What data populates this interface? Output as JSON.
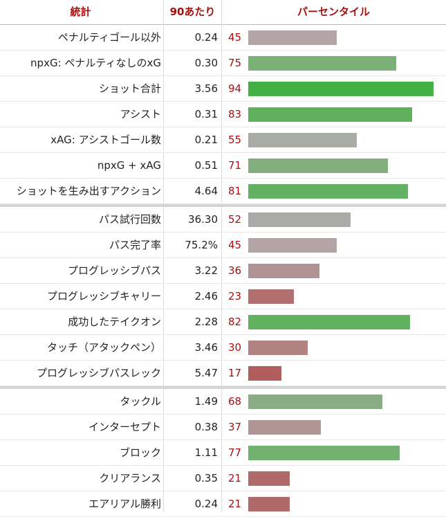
{
  "header": {
    "stat": "統計",
    "per90": "90あたり",
    "percentile": "パーセンタイル"
  },
  "groups": [
    {
      "rows": [
        {
          "stat": "ペナルティゴール以外",
          "per90": "0.24",
          "percentile": 45,
          "color": "#b3a5a5"
        },
        {
          "stat": "npxG: ペナルティなしのxG",
          "per90": "0.30",
          "percentile": 75,
          "color": "#7bb079"
        },
        {
          "stat": "ショット合計",
          "per90": "3.56",
          "percentile": 94,
          "color": "#43b143"
        },
        {
          "stat": "アシスト",
          "per90": "0.31",
          "percentile": 83,
          "color": "#5fb15e"
        },
        {
          "stat": "xAG: アシストゴール数",
          "per90": "0.21",
          "percentile": 55,
          "color": "#a8aca5"
        },
        {
          "stat": "npxG + xAG",
          "per90": "0.51",
          "percentile": 71,
          "color": "#84ae80"
        },
        {
          "stat": "ショットを生み出すアクション",
          "per90": "4.64",
          "percentile": 81,
          "color": "#63b162"
        }
      ]
    },
    {
      "rows": [
        {
          "stat": "パス試行回数",
          "per90": "36.30",
          "percentile": 52,
          "color": "#aaaaa7"
        },
        {
          "stat": "パス完了率",
          "per90": "75.2%",
          "percentile": 45,
          "color": "#b3a5a5"
        },
        {
          "stat": "プログレッシブパス",
          "per90": "3.22",
          "percentile": 36,
          "color": "#b19393"
        },
        {
          "stat": "プログレッシブキャリー",
          "per90": "2.46",
          "percentile": 23,
          "color": "#b16f6f"
        },
        {
          "stat": "成功したテイクオン",
          "per90": "2.28",
          "percentile": 82,
          "color": "#61b160"
        },
        {
          "stat": "タッチ（アタックペン）",
          "per90": "3.46",
          "percentile": 30,
          "color": "#b18383"
        },
        {
          "stat": "プログレッシブパスレック",
          "per90": "5.47",
          "percentile": 17,
          "color": "#b15e5e"
        }
      ]
    },
    {
      "rows": [
        {
          "stat": "タックル",
          "per90": "1.49",
          "percentile": 68,
          "color": "#8aad86"
        },
        {
          "stat": "インターセプト",
          "per90": "0.38",
          "percentile": 37,
          "color": "#b19595"
        },
        {
          "stat": "ブロック",
          "per90": "1.11",
          "percentile": 77,
          "color": "#72b070"
        },
        {
          "stat": "クリアランス",
          "per90": "0.35",
          "percentile": 21,
          "color": "#b16a6a"
        },
        {
          "stat": "エアリアル勝利",
          "per90": "0.24",
          "percentile": 21,
          "color": "#b16a6a"
        }
      ]
    }
  ]
}
